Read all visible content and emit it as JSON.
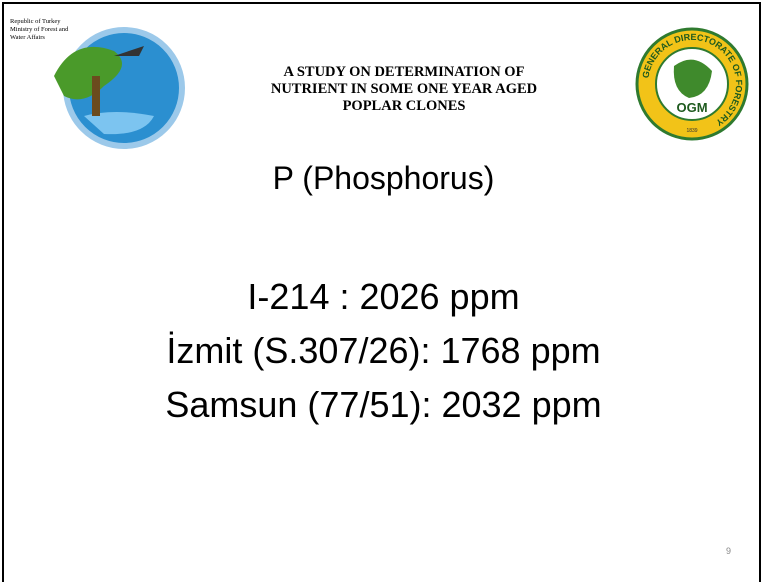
{
  "header": {
    "ministry": [
      "Republic of Turkey",
      "Ministry of Forest and",
      "Water Affairs"
    ],
    "title": [
      "A STUDY ON DETERMINATION OF",
      "NUTRIENT IN SOME ONE YEAR AGED",
      "POPLAR CLONES"
    ],
    "logo_right": {
      "ring": "GENERAL DIRECTORATE OF FORESTRY",
      "abbr": "OGM",
      "year": "1839"
    }
  },
  "slide": {
    "heading": "P (Phosphorus)",
    "lines": [
      "I-214 : 2026 ppm",
      "İzmit (S.307/26): 1768 ppm",
      "Samsun (77/51): 2032 ppm"
    ],
    "page_number": "9"
  }
}
